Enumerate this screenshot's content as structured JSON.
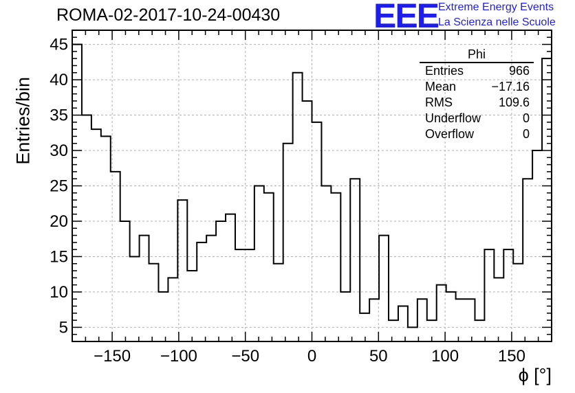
{
  "header": {
    "title": "ROMA-02-2017-10-24-00430",
    "logo_text": "EEE",
    "logo_line1": "Extreme Energy Events",
    "logo_line2": "La Scienza nelle Scuole"
  },
  "stats_box": {
    "title": "Phi",
    "rows": [
      {
        "label": "Entries",
        "value": "966"
      },
      {
        "label": "Mean",
        "value": "−17.16"
      },
      {
        "label": "RMS",
        "value": "109.6"
      },
      {
        "label": "Underflow",
        "value": "0"
      },
      {
        "label": "Overflow",
        "value": "0"
      }
    ]
  },
  "colors": {
    "logo": "#1e1ee8",
    "line": "#000000",
    "grid": "#b0b0b0"
  },
  "chart_data": {
    "type": "histogram",
    "xlabel": "ϕ [°]",
    "ylabel": "Entries/bin",
    "xlim": [
      -180,
      180
    ],
    "ylim": [
      3,
      47
    ],
    "bin_width": 7.2,
    "x_ticks": [
      -150,
      -100,
      -50,
      0,
      50,
      100,
      150
    ],
    "x_tick_labels": [
      "−150",
      "−100",
      "−50",
      "0",
      "50",
      "100",
      "150"
    ],
    "y_ticks": [
      5,
      10,
      15,
      20,
      25,
      30,
      35,
      40,
      45
    ],
    "y_tick_labels": [
      "5",
      "10",
      "15",
      "20",
      "25",
      "30",
      "35",
      "40",
      "45"
    ],
    "grid": true,
    "values": [
      45,
      35,
      33,
      32,
      27,
      20,
      15,
      18,
      14,
      10,
      12,
      23,
      13,
      17,
      18,
      20,
      21,
      16,
      16,
      25,
      24,
      14,
      31,
      41,
      37,
      34,
      25,
      24,
      10,
      26,
      7,
      9,
      18,
      6,
      8,
      5,
      9,
      6,
      11,
      10,
      9,
      9,
      6,
      16,
      12,
      16,
      14,
      26,
      30,
      43
    ]
  }
}
